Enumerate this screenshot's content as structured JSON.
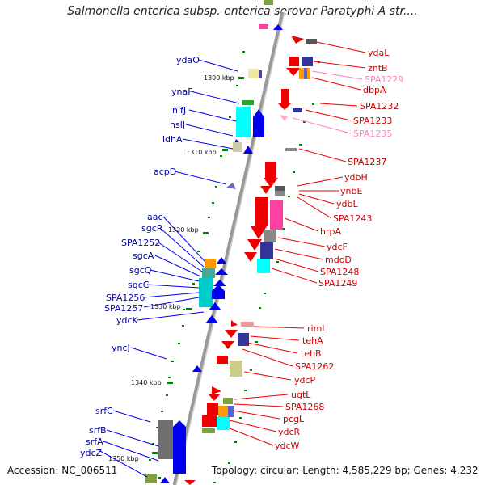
{
  "header": {
    "title": "Salmonella enterica subsp. enterica serovar Paratyphi A str...."
  },
  "footer": {
    "accession": "Accession: NC_006511",
    "summary": "Topology: circular; Length: 4,585,229 bp; Genes: 4,232"
  },
  "kbp_ticks": [
    "1300 kbp",
    "1310 kbp",
    "1320 kbp",
    "1330 kbp",
    "1340 kbp",
    "1350 kbp"
  ],
  "left_genes": [
    "ydaO",
    "ynaF",
    "nifJ",
    "hslJ",
    "ldhA",
    "acpD",
    "aac",
    "sgcR",
    "SPA1252",
    "sgcA",
    "sgcQ",
    "sgcC",
    "SPA1256",
    "SPA1257",
    "ydcK",
    "yncJ",
    "srfC",
    "srfB",
    "srfA",
    "ydcZ"
  ],
  "right_genes": [
    "ydaL",
    "zntB",
    "SPA1229",
    "dbpA",
    "SPA1232",
    "SPA1233",
    "SPA1235",
    "SPA1237",
    "ydbH",
    "ynbE",
    "ydbL",
    "SPA1243",
    "hrpA",
    "ydcF",
    "mdoD",
    "SPA1248",
    "SPA1249",
    "rimL",
    "tehA",
    "tehB",
    "SPA1262",
    "ydcP",
    "ugtL",
    "SPA1268",
    "pcgL",
    "ydcR",
    "ydcW"
  ],
  "colors": {
    "minus_strand": "#0000ee",
    "plus_strand": "#ee0000",
    "pseudo_label": "#ff7fbf",
    "backbone": "#888888",
    "tick": "#008000"
  }
}
